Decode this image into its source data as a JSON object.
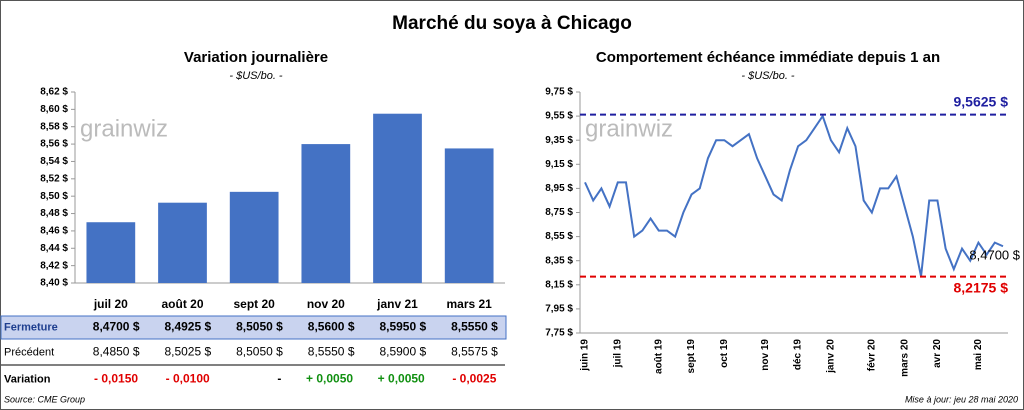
{
  "title": "Marché du soya à Chicago",
  "watermark": "grainwiz",
  "chart_data": [
    {
      "type": "bar",
      "title": "Variation journalière",
      "subtitle": "- $US/bo. -",
      "color": "#4472c4",
      "grid": false,
      "categories": [
        "juil 20",
        "août 20",
        "sept 20",
        "nov 20",
        "janv 21",
        "mars 21"
      ],
      "values": [
        8.47,
        8.4925,
        8.505,
        8.56,
        8.595,
        8.555
      ],
      "ylim": [
        8.4,
        8.62
      ],
      "yticks": [
        {
          "value": 8.4,
          "label": "8,40 $"
        },
        {
          "value": 8.42,
          "label": "8,42 $"
        },
        {
          "value": 8.44,
          "label": "8,44 $"
        },
        {
          "value": 8.46,
          "label": "8,46 $"
        },
        {
          "value": 8.48,
          "label": "8,48 $"
        },
        {
          "value": 8.5,
          "label": "8,50 $"
        },
        {
          "value": 8.52,
          "label": "8,52 $"
        },
        {
          "value": 8.54,
          "label": "8,54 $"
        },
        {
          "value": 8.56,
          "label": "8,56 $"
        },
        {
          "value": 8.58,
          "label": "8,58 $"
        },
        {
          "value": 8.6,
          "label": "8,60 $"
        },
        {
          "value": 8.62,
          "label": "8,62 $"
        }
      ]
    },
    {
      "type": "line",
      "title": "Comportement  échéance immédiate depuis 1 an",
      "subtitle": "- $US/bo. -",
      "color": "#4472c4",
      "grid": false,
      "categories": [
        "juin 19",
        null,
        null,
        null,
        "juil 19",
        null,
        null,
        null,
        null,
        "août 19",
        null,
        null,
        null,
        "sept 19",
        null,
        null,
        null,
        "oct 19",
        null,
        null,
        null,
        null,
        "nov 19",
        null,
        null,
        null,
        "déc 19",
        null,
        null,
        null,
        "janv 20",
        null,
        null,
        null,
        null,
        "févr 20",
        null,
        null,
        null,
        "mars 20",
        null,
        null,
        null,
        "avr 20",
        null,
        null,
        null,
        null,
        "mai 20",
        null,
        null,
        null
      ],
      "values": [
        9.0,
        8.85,
        8.95,
        8.8,
        9.0,
        9.0,
        8.55,
        8.6,
        8.7,
        8.6,
        8.6,
        8.55,
        8.75,
        8.9,
        8.95,
        9.2,
        9.35,
        9.35,
        9.3,
        9.35,
        9.4,
        9.2,
        9.05,
        8.9,
        8.85,
        9.1,
        9.3,
        9.35,
        9.45,
        9.55,
        9.35,
        9.25,
        9.45,
        9.3,
        8.85,
        8.75,
        8.95,
        8.95,
        9.05,
        8.8,
        8.55,
        8.22,
        8.85,
        8.85,
        8.45,
        8.28,
        8.45,
        8.35,
        8.5,
        8.4,
        8.5,
        8.47
      ],
      "ylim": [
        7.75,
        9.75
      ],
      "yticks": [
        {
          "value": 7.75,
          "label": "7,75 $"
        },
        {
          "value": 7.95,
          "label": "7,95 $"
        },
        {
          "value": 8.15,
          "label": "8,15 $"
        },
        {
          "value": 8.35,
          "label": "8,35 $"
        },
        {
          "value": 8.55,
          "label": "8,55 $"
        },
        {
          "value": 8.75,
          "label": "8,75 $"
        },
        {
          "value": 8.95,
          "label": "8,95 $"
        },
        {
          "value": 9.15,
          "label": "9,15 $"
        },
        {
          "value": 9.35,
          "label": "9,35 $"
        },
        {
          "value": 9.55,
          "label": "9,55 $"
        },
        {
          "value": 9.75,
          "label": "9,75 $"
        }
      ],
      "annotations": [
        {
          "value": 9.5625,
          "label": "9,5625 $",
          "color": "#1f1fa0",
          "line": true
        },
        {
          "value": 8.2175,
          "label": "8,2175 $",
          "color": "#e00000",
          "line": true
        },
        {
          "value": 8.47,
          "label": "8,4700 $",
          "color": "#000000",
          "line": false
        }
      ]
    }
  ],
  "table": {
    "rows": [
      {
        "label": "Fermeture",
        "cells": [
          "8,4700  $",
          "8,4925  $",
          "8,5050  $",
          "8,5600  $",
          "8,5950  $",
          "8,5550  $"
        ]
      },
      {
        "label": "Précédent",
        "cells": [
          "8,4850  $",
          "8,5025  $",
          "8,5050  $",
          "8,5550  $",
          "8,5900  $",
          "8,5575  $"
        ]
      },
      {
        "label": "Variation",
        "cells": [
          "- 0,0150",
          "- 0,0100",
          "-",
          "+ 0,0050",
          "+ 0,0050",
          "- 0,0025"
        ]
      }
    ]
  },
  "footer": {
    "source": "Source: CME Group",
    "updated": "Mise à jour: jeu 28 mai 2020"
  }
}
